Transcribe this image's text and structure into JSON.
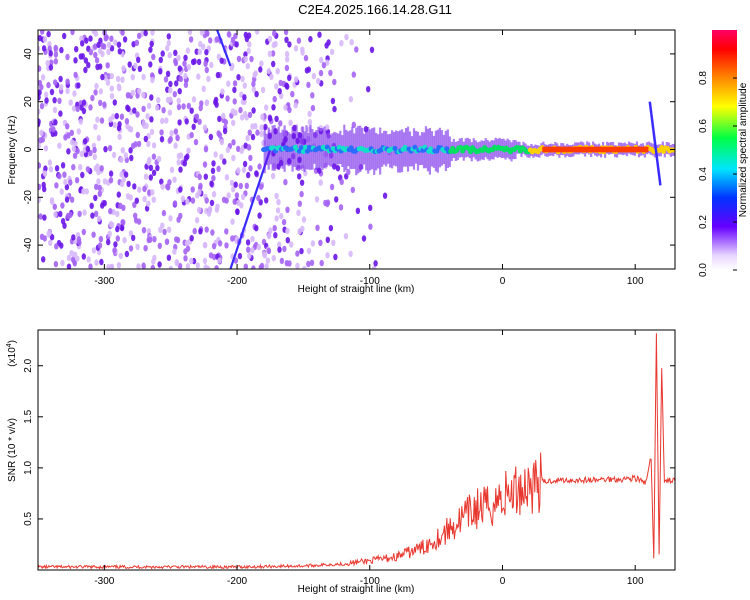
{
  "title": "C2E4.2025.166.14.28.G11",
  "colors": {
    "snr_line": "#e8382f",
    "spectral_main": "#7a1cf0",
    "spectral_band": "#12e0c8"
  },
  "chart_data": [
    {
      "type": "heatmap",
      "xlabel": "Height of straight line (km)",
      "ylabel": "Frequency (Hz)",
      "xlim": [
        -350,
        130
      ],
      "ylim": [
        -50,
        50
      ],
      "xticks": [
        -300,
        -200,
        -100,
        0,
        100
      ],
      "yticks": [
        -40,
        -20,
        0,
        20,
        40
      ],
      "colorbar": {
        "label": "Normalized spectral amplitude",
        "range": [
          0,
          1
        ],
        "ticks": [
          0.0,
          0.2,
          0.4,
          0.6,
          0.8
        ],
        "colors": [
          "#ffffff",
          "#6600ff",
          "#0033ff",
          "#00e5ff",
          "#00ff44",
          "#ffff00",
          "#ff8800",
          "#ff0000",
          "#ff0066"
        ]
      },
      "features": {
        "diffuse_noise_extent_km": [
          -350,
          -115
        ],
        "diagonal_streak": {
          "x": [
            -205,
            -175
          ],
          "y": [
            -50,
            0
          ]
        },
        "main_band_center_hz": 0,
        "main_band_extent_km": [
          -180,
          130
        ],
        "spike_at_km": 113
      }
    },
    {
      "type": "line",
      "xlabel": "Height of straight line (km)",
      "ylabel": "SNR (10 * v/v)",
      "yscale_label": "(x10",
      "yscale_exp": "4",
      "xlim": [
        -350,
        130
      ],
      "ylim": [
        0,
        2.35
      ],
      "xticks": [
        -300,
        -200,
        -100,
        0,
        100
      ],
      "yticks": [
        "0.5",
        "1.0",
        "1.5",
        "2.0"
      ],
      "series": [
        {
          "x": [
            -350,
            -300,
            -250,
            -200,
            -150,
            -120,
            -100,
            -80,
            -60,
            -45,
            -30,
            -20,
            -10,
            0,
            10,
            20,
            30,
            40,
            50,
            60,
            70,
            80,
            90,
            100,
            108,
            112,
            114,
            116,
            118,
            120,
            122,
            126,
            130
          ],
          "values": [
            0.03,
            0.03,
            0.03,
            0.03,
            0.04,
            0.06,
            0.09,
            0.13,
            0.22,
            0.35,
            0.5,
            0.6,
            0.62,
            0.72,
            0.78,
            0.84,
            0.86,
            0.88,
            0.88,
            0.88,
            0.88,
            0.89,
            0.89,
            0.9,
            0.85,
            1.1,
            0.1,
            2.3,
            0.15,
            2.0,
            0.87,
            0.88,
            0.87
          ]
        }
      ]
    }
  ]
}
